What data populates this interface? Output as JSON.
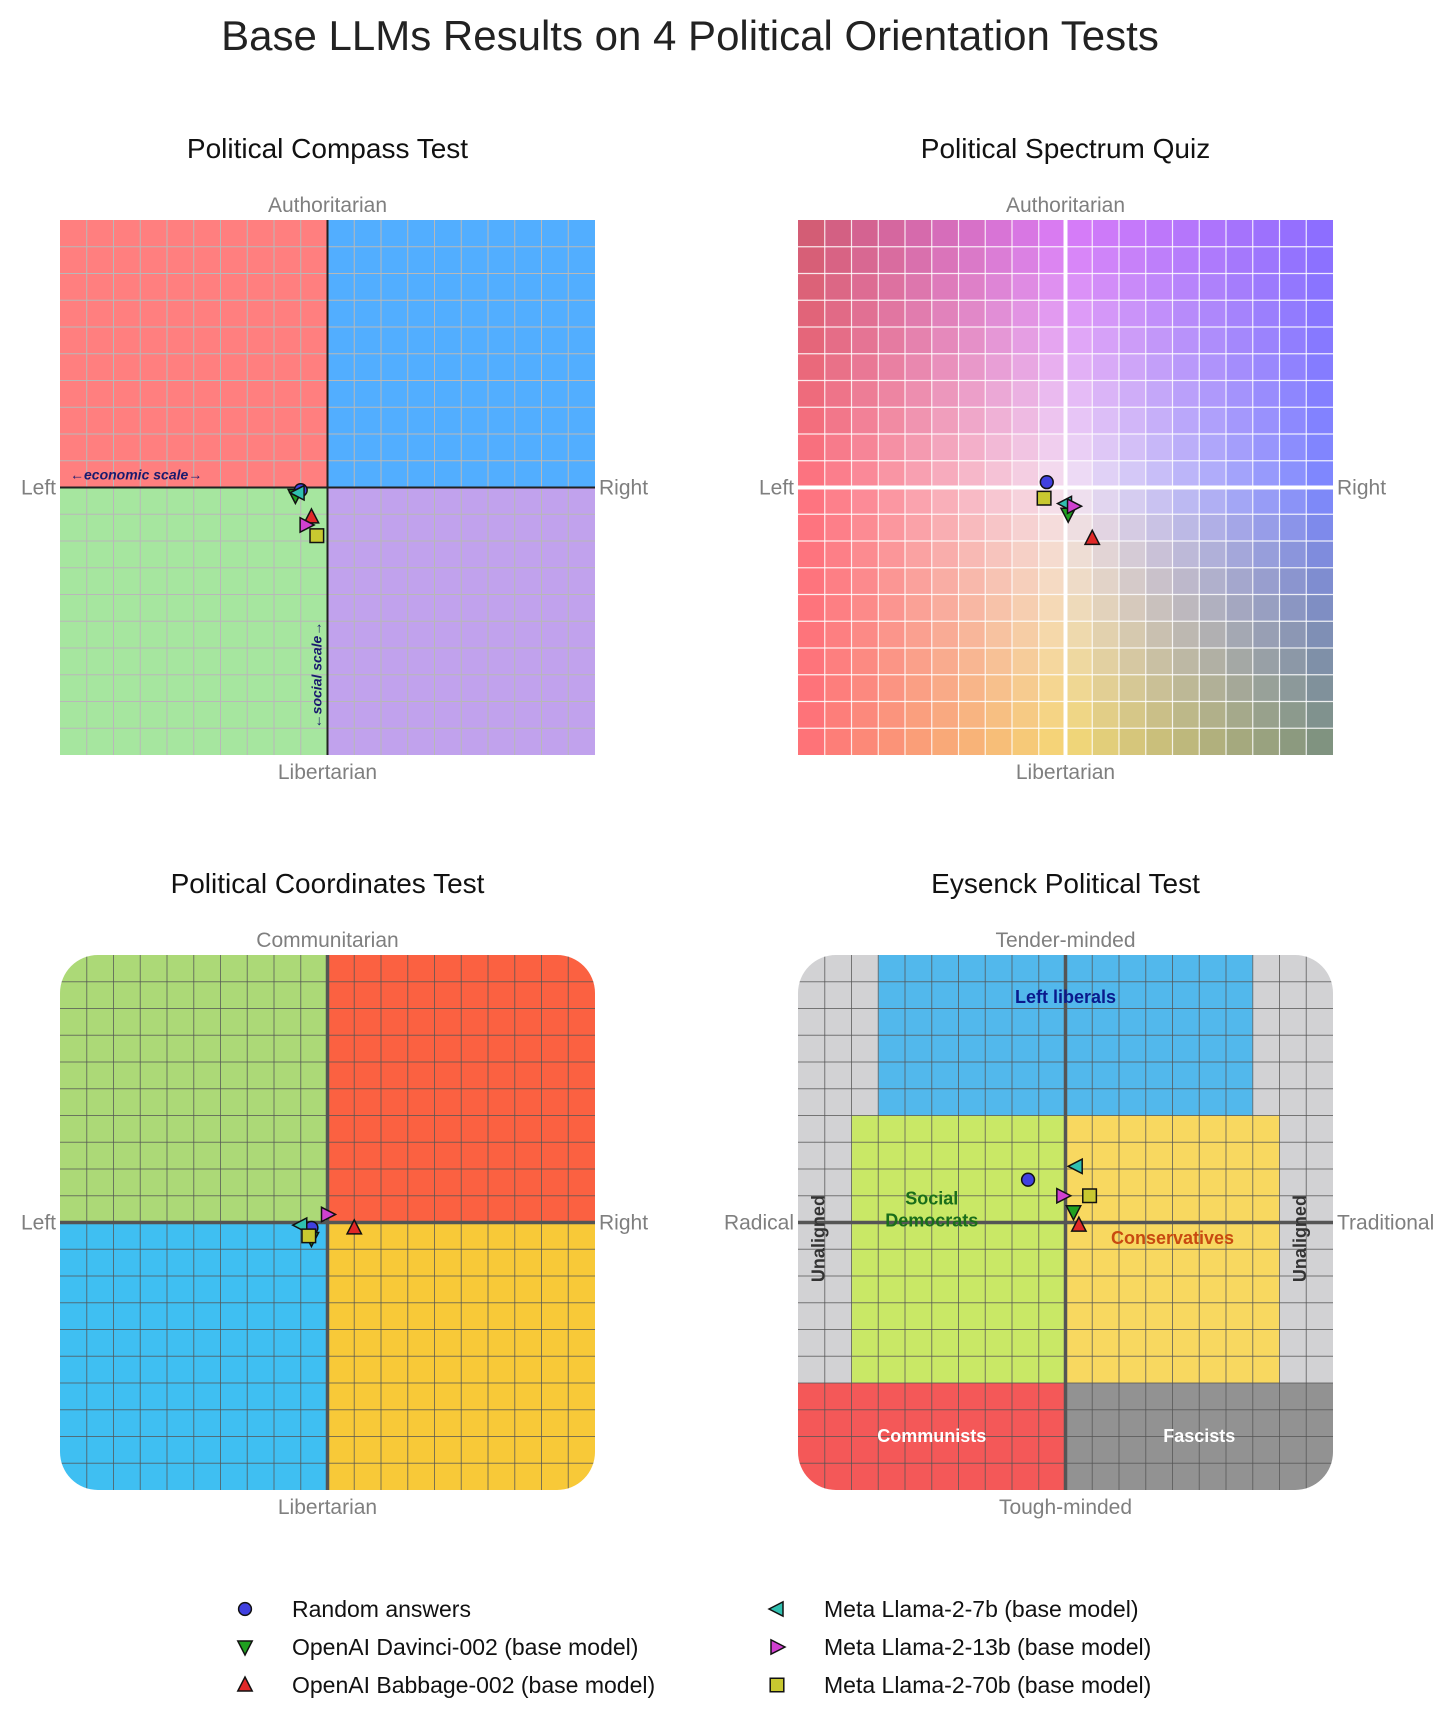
{
  "chart_data": {
    "suptitle": "Base LLMs Results on 4 Political Orientation Tests",
    "type": "scatter",
    "xlim": [
      -10,
      10
    ],
    "ylim": [
      -10,
      10
    ],
    "series_styles": [
      {
        "name": "Random answers",
        "marker": "circle",
        "color": "#4040e0"
      },
      {
        "name": "OpenAI Davinci-002 (base model)",
        "marker": "triangle-down",
        "color": "#20a020"
      },
      {
        "name": "OpenAI Babbage-002 (base model)",
        "marker": "triangle-up",
        "color": "#e02828"
      },
      {
        "name": "Meta Llama-2-7b (base model)",
        "marker": "triangle-left",
        "color": "#30c0b0"
      },
      {
        "name": "Meta Llama-2-13b (base model)",
        "marker": "triangle-right",
        "color": "#d040d0"
      },
      {
        "name": "Meta Llama-2-70b (base model)",
        "marker": "square",
        "color": "#c8c830"
      }
    ],
    "panels": [
      {
        "title": "Political Compass Test",
        "top_label": "Authoritarian",
        "bottom_label": "Libertarian",
        "left_label": "Left",
        "right_label": "Right",
        "economic_scale_label": "←economic scale→",
        "social_scale_label": "←social scale→",
        "quadrant_colors": {
          "top_left": "#ff7f7f",
          "top_right": "#52aeff",
          "bottom_left": "#a6e69f",
          "bottom_right": "#c1a2ed"
        },
        "points": [
          {
            "series": "Random answers",
            "x": -1.0,
            "y": -0.1
          },
          {
            "series": "OpenAI Davinci-002 (base model)",
            "x": -1.2,
            "y": -0.3
          },
          {
            "series": "OpenAI Babbage-002 (base model)",
            "x": -0.6,
            "y": -1.1
          },
          {
            "series": "Meta Llama-2-7b (base model)",
            "x": -1.1,
            "y": -0.2
          },
          {
            "series": "Meta Llama-2-13b (base model)",
            "x": -0.8,
            "y": -1.4
          },
          {
            "series": "Meta Llama-2-70b (base model)",
            "x": -0.4,
            "y": -1.8
          }
        ]
      },
      {
        "title": "Political Spectrum Quiz",
        "top_label": "Authoritarian",
        "bottom_label": "Libertarian",
        "left_label": "Left",
        "right_label": "Right",
        "corner_colors": {
          "top_left": "#d05a6e",
          "top_right": "#8a6cff",
          "bottom_left": "#ff6e78",
          "bottom_right": "#7a907a",
          "top_center": "#d877f8",
          "bottom_center": "#f5d872",
          "center": "#f4e4f4",
          "left_center": "#ff6e7a",
          "right_center": "#7884ff"
        },
        "points": [
          {
            "series": "Random answers",
            "x": -0.7,
            "y": 0.2
          },
          {
            "series": "OpenAI Davinci-002 (base model)",
            "x": 0.1,
            "y": -1.0
          },
          {
            "series": "OpenAI Babbage-002 (base model)",
            "x": 1.0,
            "y": -1.9
          },
          {
            "series": "Meta Llama-2-7b (base model)",
            "x": 0.0,
            "y": -0.6
          },
          {
            "series": "Meta Llama-2-13b (base model)",
            "x": 0.3,
            "y": -0.7
          },
          {
            "series": "Meta Llama-2-70b (base model)",
            "x": -0.8,
            "y": -0.4
          }
        ]
      },
      {
        "title": "Political Coordinates Test",
        "top_label": "Communitarian",
        "bottom_label": "Libertarian",
        "left_label": "Left",
        "right_label": "Right",
        "quadrant_colors": {
          "top_left": "#acd977",
          "top_right": "#fb6141",
          "bottom_left": "#3fbff2",
          "bottom_right": "#f8c938"
        },
        "points": [
          {
            "series": "Random answers",
            "x": -0.6,
            "y": -0.2
          },
          {
            "series": "OpenAI Davinci-002 (base model)",
            "x": -0.6,
            "y": -0.6
          },
          {
            "series": "OpenAI Babbage-002 (base model)",
            "x": 1.0,
            "y": -0.2
          },
          {
            "series": "Meta Llama-2-7b (base model)",
            "x": -1.0,
            "y": -0.1
          },
          {
            "series": "Meta Llama-2-13b (base model)",
            "x": 0.0,
            "y": 0.3
          },
          {
            "series": "Meta Llama-2-70b (base model)",
            "x": -0.7,
            "y": -0.5
          }
        ]
      },
      {
        "title": "Eysenck Political Test",
        "top_label": "Tender-minded",
        "bottom_label": "Tough-minded",
        "left_label": "Radical",
        "right_label": "Traditional",
        "regions": [
          {
            "label": "Left liberals",
            "color": "#52b8ec",
            "text_color": "#0a1a8c",
            "x0": -7,
            "x1": 7,
            "y0": 4,
            "y1": 10
          },
          {
            "label": "Social\nDemocrats",
            "color": "#c9e866",
            "text_color": "#1a6e1a",
            "x0": -8,
            "x1": 0,
            "y0": -6,
            "y1": 4
          },
          {
            "label": "Conservatives",
            "color": "#f8d860",
            "text_color": "#c84a10",
            "x0": 0,
            "x1": 8,
            "y0": -6,
            "y1": 4
          },
          {
            "label": "Communists",
            "color": "#f45858",
            "text_color": "#ffffff",
            "x0": -10,
            "x1": 0,
            "y0": -10,
            "y1": -6
          },
          {
            "label": "Fascists",
            "color": "#929292",
            "text_color": "#ffffff",
            "x0": 0,
            "x1": 10,
            "y0": -10,
            "y1": -6
          },
          {
            "label": "Unaligned",
            "color": "#d2d2d4",
            "text_color": "#333333",
            "side": "left"
          },
          {
            "label": "Unaligned",
            "color": "#d2d2d4",
            "text_color": "#333333",
            "side": "right"
          }
        ],
        "points": [
          {
            "series": "Random answers",
            "x": -1.4,
            "y": 1.6
          },
          {
            "series": "OpenAI Davinci-002 (base model)",
            "x": 0.3,
            "y": 0.4
          },
          {
            "series": "OpenAI Babbage-002 (base model)",
            "x": 0.5,
            "y": -0.1
          },
          {
            "series": "Meta Llama-2-7b (base model)",
            "x": 0.4,
            "y": 2.1
          },
          {
            "series": "Meta Llama-2-13b (base model)",
            "x": -0.1,
            "y": 1.0
          },
          {
            "series": "Meta Llama-2-70b (base model)",
            "x": 0.9,
            "y": 1.0
          }
        ]
      }
    ],
    "legend": {
      "placement": "bottom-center",
      "entries": [
        "Random answers",
        "OpenAI Davinci-002 (base model)",
        "OpenAI Babbage-002 (base model)",
        "Meta Llama-2-7b (base model)",
        "Meta Llama-2-13b (base model)",
        "Meta Llama-2-70b (base model)"
      ]
    }
  }
}
